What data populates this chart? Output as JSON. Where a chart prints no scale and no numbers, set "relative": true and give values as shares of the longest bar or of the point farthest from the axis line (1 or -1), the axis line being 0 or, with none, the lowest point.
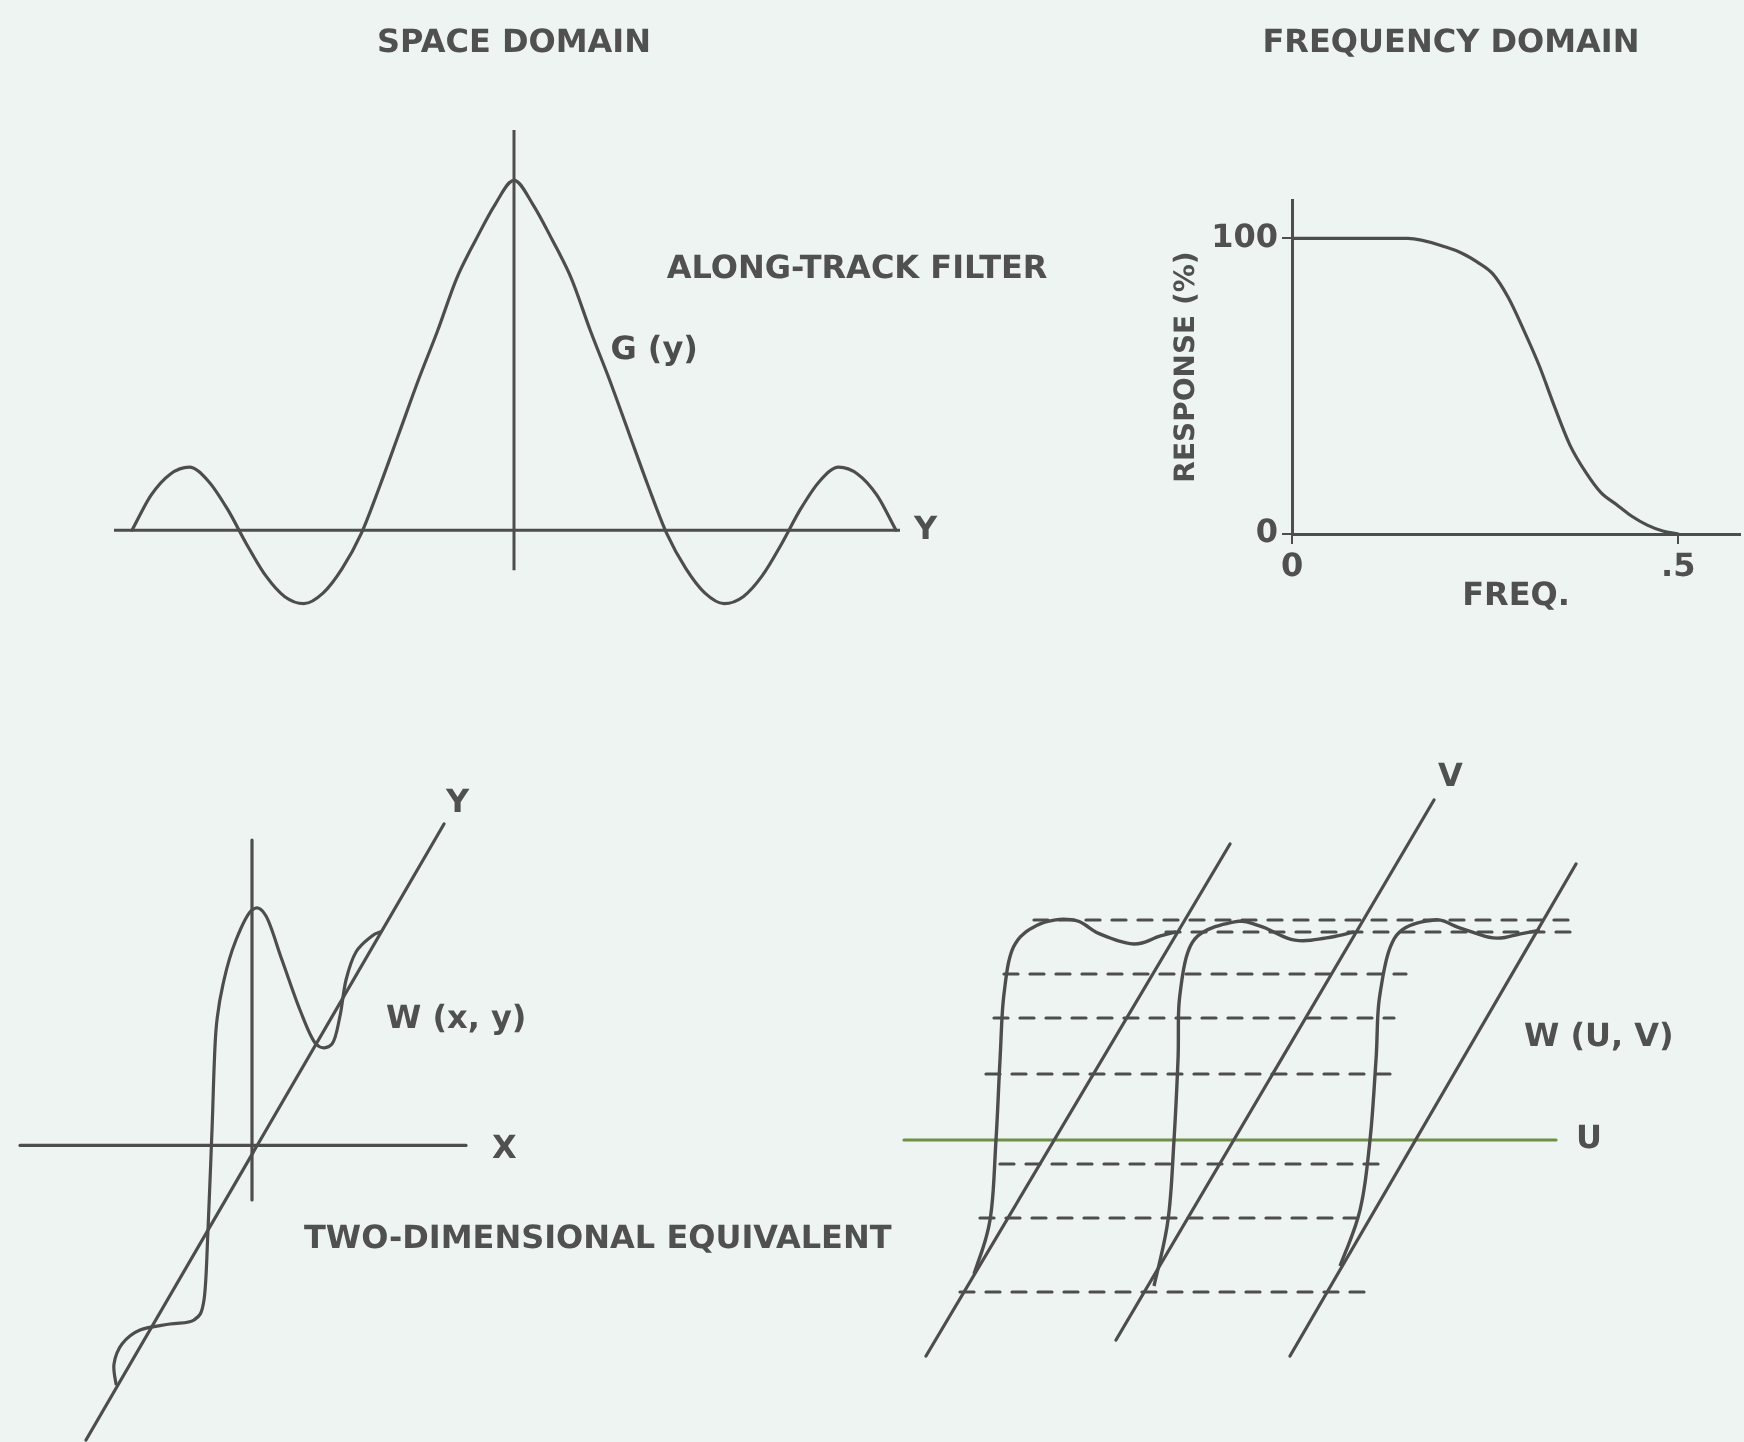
{
  "chart_data": [
    {
      "type": "line",
      "title": "SPACE DOMAIN",
      "xlabel": "Y",
      "relative": true,
      "categories": [
        null,
        null,
        null,
        null,
        null,
        null,
        null,
        null,
        null,
        null,
        null,
        null,
        null,
        null,
        null,
        null,
        null,
        null,
        null,
        null,
        null,
        null,
        null,
        null,
        null,
        null,
        null,
        null,
        null,
        null,
        null,
        null,
        null,
        null,
        null,
        null,
        null,
        null,
        null,
        null,
        null
      ],
      "series": [
        {
          "name": "G (y)",
          "color": "#4d4d4d",
          "values": [
            0,
            0.1,
            0.16,
            0.18,
            0.14,
            0.06,
            -0.04,
            -0.13,
            -0.19,
            -0.21,
            -0.18,
            -0.11,
            -0.01,
            0.13,
            0.28,
            0.43,
            0.57,
            0.72,
            0.83,
            0.93,
            1,
            0.93,
            0.83,
            0.72,
            0.57,
            0.43,
            0.28,
            0.13,
            -0.01,
            -0.11,
            -0.18,
            -0.21,
            -0.19,
            -0.13,
            -0.04,
            0.06,
            0.14,
            0.18,
            0.16,
            0.1,
            0
          ]
        }
      ],
      "annotations": [
        "ALONG-TRACK FILTER"
      ]
    },
    {
      "type": "line",
      "title": "FREQUENCY DOMAIN",
      "xlabel": "FREQ.",
      "ylabel": "RESPONSE (%)",
      "x": [
        0,
        0.05,
        0.1,
        0.15,
        0.2,
        0.22,
        0.24,
        0.26,
        0.28,
        0.3,
        0.32,
        0.34,
        0.36,
        0.38,
        0.4,
        0.42,
        0.44,
        0.46,
        0.48,
        0.5
      ],
      "values": [
        100,
        100,
        100,
        100,
        97,
        95,
        92,
        88,
        80,
        69,
        57,
        43,
        30,
        21,
        14,
        10,
        6,
        3,
        1,
        0
      ],
      "color": "#4d4d4d",
      "xlim": [
        0,
        0.58
      ],
      "xticks": [
        0,
        {
          "value": 0.5,
          "label": ".5"
        }
      ],
      "ylim": [
        0,
        113
      ],
      "yticks": [
        0,
        100
      ]
    },
    {
      "type": "other",
      "xlabel": "X",
      "ylabel": "Y",
      "annotations": [
        "W (x, y)",
        "TWO-DIMENSIONAL EQUIVALENT"
      ]
    },
    {
      "type": "other",
      "xlabel": "U",
      "ylabel": "V",
      "annotations": [
        "W (U, V)"
      ]
    }
  ]
}
